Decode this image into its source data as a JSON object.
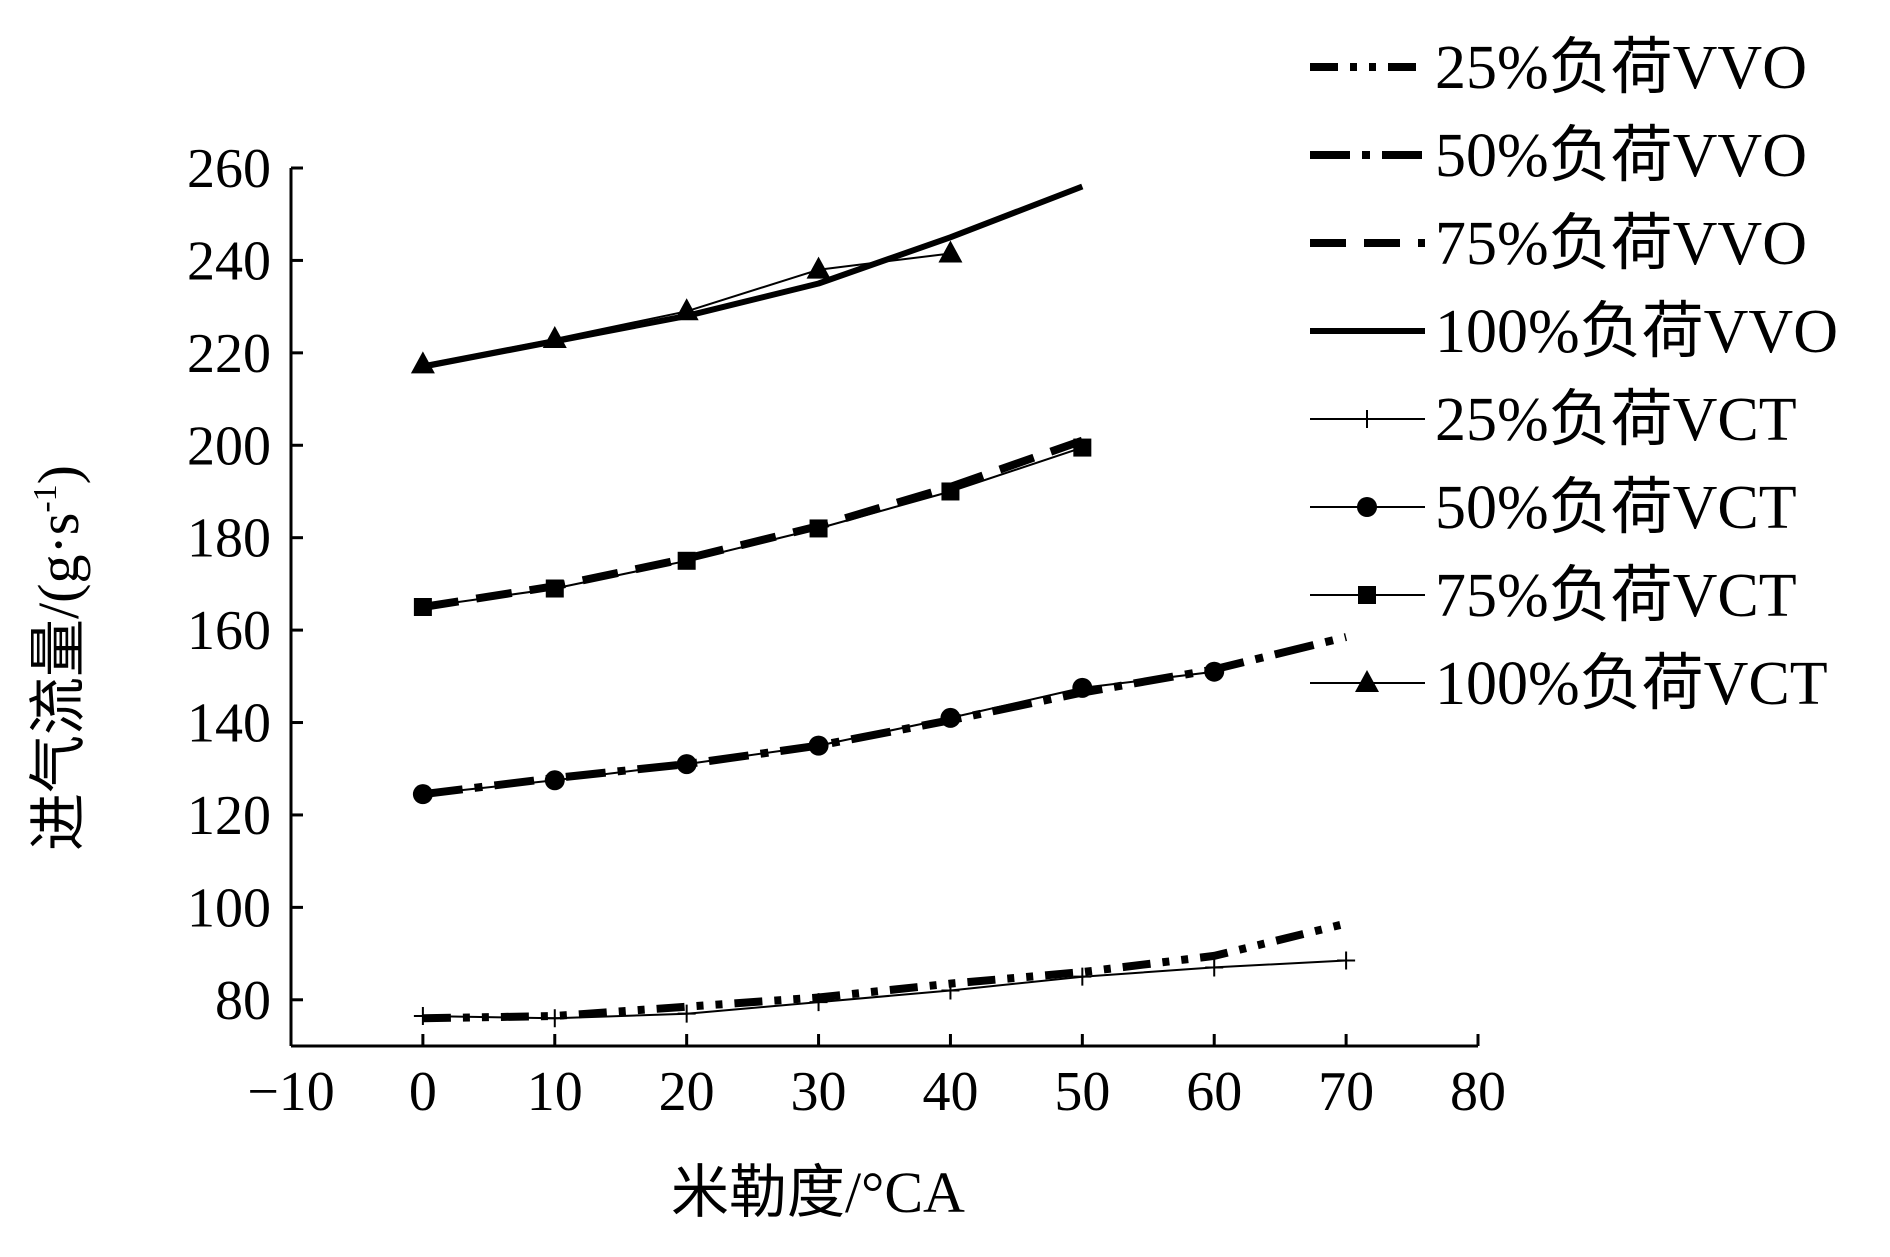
{
  "chart_data": {
    "type": "line",
    "title": "",
    "xlabel": "米勒度/°CA",
    "ylabel": "进气流量/(g·s",
    "ylabel_sup": "-1",
    "ylabel_close": ")",
    "xlim": [
      -10,
      80
    ],
    "ylim": [
      70,
      260
    ],
    "xticks": [
      -10,
      0,
      10,
      20,
      30,
      40,
      50,
      60,
      70,
      80
    ],
    "xtick_labels": [
      "−10",
      "0",
      "10",
      "20",
      "30",
      "40",
      "50",
      "60",
      "70",
      "80"
    ],
    "yticks": [
      80,
      100,
      120,
      140,
      160,
      180,
      200,
      220,
      240,
      260
    ],
    "ytick_labels": [
      "80",
      "100",
      "120",
      "140",
      "160",
      "180",
      "200",
      "220",
      "240",
      "260"
    ],
    "grid": false,
    "legend_position": "top-right",
    "series": [
      {
        "name": "25%负荷VVO",
        "style": "dash-dot-dot",
        "marker": "none",
        "x": [
          0,
          10,
          20,
          30,
          40,
          50,
          60,
          70
        ],
        "y": [
          76,
          76.5,
          78.5,
          80.5,
          83.5,
          86,
          89.5,
          96.5
        ]
      },
      {
        "name": "50%负荷VVO",
        "style": "long-dash-dot",
        "marker": "none",
        "x": [
          0,
          10,
          20,
          30,
          40,
          50,
          60,
          70
        ],
        "y": [
          124.5,
          128,
          131,
          135,
          140.5,
          146.5,
          151.5,
          158.5
        ]
      },
      {
        "name": "75%负荷VVO",
        "style": "dashed",
        "marker": "none",
        "x": [
          0,
          10,
          20,
          30,
          40,
          50
        ],
        "y": [
          165,
          169.5,
          175.5,
          182.5,
          191,
          201
        ]
      },
      {
        "name": "100%负荷VVO",
        "style": "solid-thick",
        "marker": "none",
        "x": [
          0,
          10,
          20,
          30,
          40,
          50
        ],
        "y": [
          217,
          222.5,
          228,
          235,
          245,
          256
        ]
      },
      {
        "name": "25%负荷VCT",
        "style": "thin",
        "marker": "plus",
        "x": [
          0,
          10,
          20,
          30,
          40,
          50,
          60,
          70
        ],
        "y": [
          76.5,
          76,
          77,
          79.5,
          82,
          85,
          87,
          88.5
        ]
      },
      {
        "name": "50%负荷VCT",
        "style": "thin",
        "marker": "circle",
        "x": [
          0,
          10,
          20,
          30,
          40,
          50,
          60
        ],
        "y": [
          124.5,
          127.5,
          131,
          135,
          141,
          147.5,
          151
        ]
      },
      {
        "name": "75%负荷VCT",
        "style": "thin",
        "marker": "square",
        "x": [
          0,
          10,
          20,
          30,
          40,
          50
        ],
        "y": [
          165,
          169,
          175,
          182,
          190,
          199.5
        ]
      },
      {
        "name": "100%负荷VCT",
        "style": "thin",
        "marker": "triangle",
        "x": [
          0,
          10,
          20,
          30,
          40
        ],
        "y": [
          217.5,
          223,
          229,
          238,
          241.5
        ]
      }
    ]
  }
}
